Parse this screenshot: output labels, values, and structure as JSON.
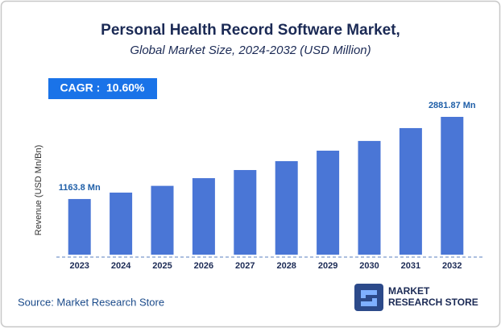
{
  "chart_data": {
    "type": "bar",
    "title": "Personal Health Record Software Market,",
    "subtitle": "Global Market Size, 2024-2032 (USD Million)",
    "annotation": "CAGR :  10.60%",
    "y_label": "Revenue (USD Mn/Bn)",
    "categories": [
      "2023",
      "2024",
      "2025",
      "2026",
      "2027",
      "2028",
      "2029",
      "2030",
      "2031",
      "2032"
    ],
    "values": [
      1163.8,
      1298,
      1439,
      1600,
      1770,
      1956,
      2175,
      2378,
      2647,
      2881.87
    ],
    "value_labels": [
      "1163.8 Mn",
      null,
      null,
      null,
      null,
      null,
      null,
      null,
      null,
      "2881.87 Mn"
    ],
    "color": "#4a76d6",
    "ylim": [
      0,
      3000
    ],
    "source": "Source: Market Research Store",
    "logo": [
      "MARKET",
      "RESEARCH STORE"
    ]
  }
}
